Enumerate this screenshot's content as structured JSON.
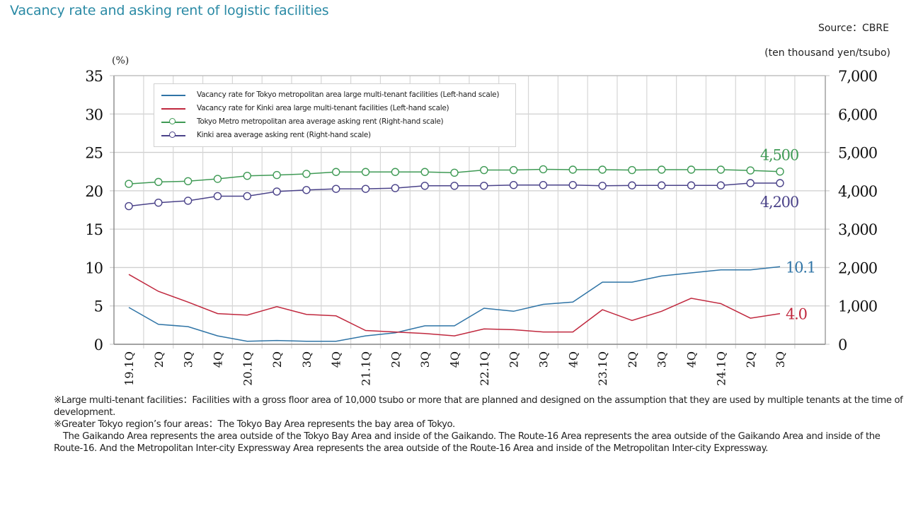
{
  "page": {
    "title": "Vacancy rate and asking rent of logistic facilities",
    "source": "Source：CBRE",
    "notes": [
      "※Large multi-tenant facilities：Facilities with a gross floor area of 10,000 tsubo or more that are planned and designed on the assumption that they are used by multiple tenants at the time of development.",
      "※Greater Tokyo region’s four areas：The Tokyo Bay Area represents the bay area of Tokyo.",
      "　The Gaikando Area represents the area outside of the Tokyo Bay Area and inside of the Gaikando. The Route-16 Area represents the area outside of the Gaikando Area and inside of the Route-16. And the Metropolitan Inter-city Expressway Area represents the area outside of the Route-16 Area and inside of the Metropolitan Inter-city Expressway."
    ]
  },
  "chart_data": {
    "type": "line",
    "title": "Vacancy rate and asking rent of logistic facilities",
    "xlabel": "",
    "ylabel": "(%)",
    "ylabel_right": "(ten thousand yen/tsubo)",
    "ylim": [
      0,
      35
    ],
    "ylim_right": [
      0,
      7000
    ],
    "yticks": [
      "35",
      "30",
      "25",
      "20",
      "15",
      "10",
      "5",
      "0"
    ],
    "yticks_right": [
      "7,000",
      "6,000",
      "5,000",
      "4,000",
      "3,000",
      "2,000",
      "1,000",
      "0"
    ],
    "grid": true,
    "legend_position": "top-left",
    "categories": [
      "19.1Q",
      "2Q",
      "3Q",
      "4Q",
      "20.1Q",
      "2Q",
      "3Q",
      "4Q",
      "21.1Q",
      "2Q",
      "3Q",
      "4Q",
      "22.1Q",
      "2Q",
      "3Q",
      "4Q",
      "23.1Q",
      "2Q",
      "3Q",
      "4Q",
      "24.1Q",
      "2Q",
      "3Q"
    ],
    "series": [
      {
        "name": "Vacancy rate for Tokyo metropolitan area large multi-tenant facilities (Left-hand scale)",
        "axis": "left",
        "color": "#2f74a6",
        "marker": false,
        "end_label": "10.1",
        "values": [
          4.8,
          2.6,
          2.3,
          1.1,
          0.4,
          0.5,
          0.4,
          0.4,
          1.1,
          1.5,
          2.4,
          2.4,
          4.7,
          4.3,
          5.2,
          5.5,
          8.1,
          8.1,
          8.9,
          9.3,
          9.7,
          9.7,
          10.1
        ]
      },
      {
        "name": "Vacancy rate for Kinki area large multi-tenant facilities (Left-hand scale)",
        "axis": "left",
        "color": "#c0283e",
        "marker": false,
        "end_label": "4.0",
        "values": [
          9.1,
          6.9,
          5.5,
          4.0,
          3.8,
          4.9,
          3.9,
          3.7,
          1.8,
          1.6,
          1.4,
          1.1,
          2.0,
          1.9,
          1.6,
          1.6,
          4.5,
          3.1,
          4.3,
          6.0,
          5.3,
          3.4,
          4.0
        ]
      },
      {
        "name": "Tokyo Metro metropolitan area average asking rent (Right-hand scale)",
        "axis": "right",
        "color": "#3f9a55",
        "marker": true,
        "end_label": "4,500",
        "values": [
          4180,
          4230,
          4250,
          4310,
          4390,
          4410,
          4440,
          4490,
          4490,
          4490,
          4490,
          4470,
          4540,
          4540,
          4560,
          4550,
          4550,
          4540,
          4550,
          4550,
          4550,
          4530,
          4500
        ]
      },
      {
        "name": "Kinki area average asking rent (Right-hand scale)",
        "axis": "right",
        "color": "#4a4289",
        "marker": true,
        "end_label": "4,200",
        "values": [
          3600,
          3690,
          3740,
          3860,
          3860,
          3980,
          4020,
          4050,
          4050,
          4070,
          4130,
          4130,
          4130,
          4150,
          4150,
          4150,
          4130,
          4140,
          4140,
          4140,
          4140,
          4200,
          4200
        ]
      }
    ]
  }
}
